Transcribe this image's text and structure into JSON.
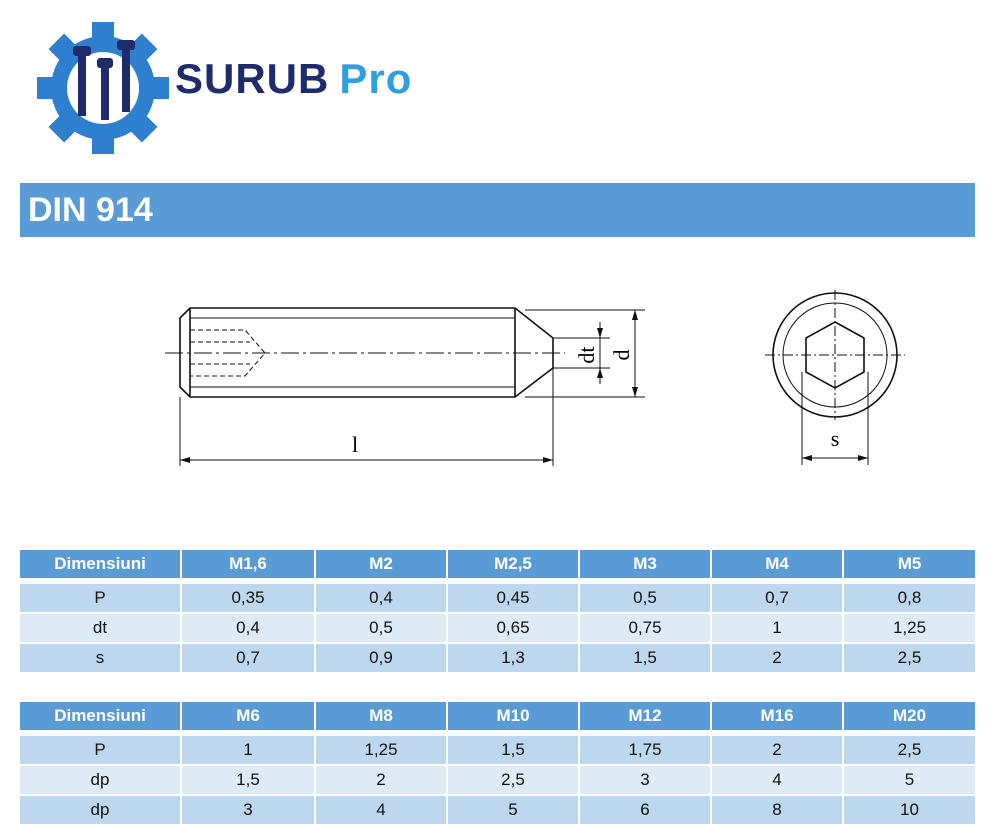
{
  "logo": {
    "brand": "SURUB",
    "suffix": "Pro"
  },
  "title": "DIN 914",
  "drawing": {
    "dt": "dt",
    "d": "d",
    "l": "l",
    "s": "s"
  },
  "tables": [
    {
      "header": [
        "Dimensiuni",
        "M1,6",
        "M2",
        "M2,5",
        "M3",
        "M4",
        "M5"
      ],
      "rows": [
        [
          "P",
          "0,35",
          "0,4",
          "0,45",
          "0,5",
          "0,7",
          "0,8"
        ],
        [
          "dt",
          "0,4",
          "0,5",
          "0,65",
          "0,75",
          "1",
          "1,25"
        ],
        [
          "s",
          "0,7",
          "0,9",
          "1,3",
          "1,5",
          "2",
          "2,5"
        ]
      ]
    },
    {
      "header": [
        "Dimensiuni",
        "M6",
        "M8",
        "M10",
        "M12",
        "M16",
        "M20"
      ],
      "rows": [
        [
          "P",
          "1",
          "1,25",
          "1,5",
          "1,75",
          "2",
          "2,5"
        ],
        [
          "dp",
          "1,5",
          "2",
          "2,5",
          "3",
          "4",
          "5"
        ],
        [
          "dp",
          "3",
          "4",
          "5",
          "6",
          "8",
          "10"
        ]
      ]
    }
  ]
}
